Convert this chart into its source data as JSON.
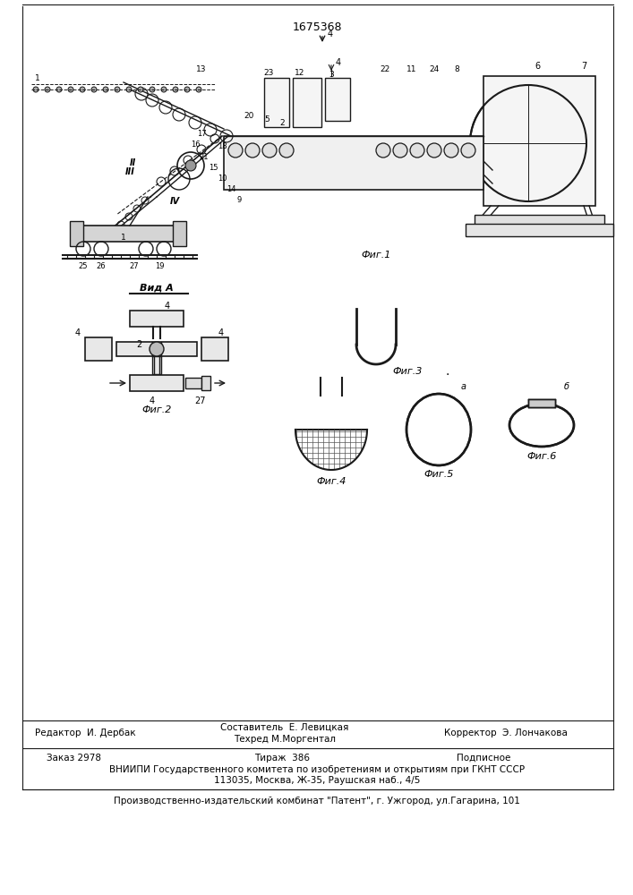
{
  "patent_number": "1675368",
  "fig1_caption": "Фиг.1",
  "fig2_caption": "Фиг.2",
  "fig3_caption": "Фиг.3",
  "fig4_caption": "Фиг.4",
  "fig5_caption": "Фиг.5",
  "fig6_caption": "Фиг.6",
  "vid_a": "Вид А",
  "bg_color": "#ffffff",
  "line_color": "#1a1a1a",
  "footer_line1": "Составитель  Е. Левицкая",
  "footer_line2": "Техред М.Моргентал",
  "footer_editor": "Редактор  И. Дербак",
  "footer_corrector": "Корректор  Э. Лончакова",
  "footer_order": "Заказ 2978",
  "footer_tirazh": "Тираж  386",
  "footer_podpisnoe": "Подписное",
  "footer_vniiipi": "ВНИИПИ Государственного комитета по изобретениям и открытиям при ГКНТ СССР",
  "footer_address": "113035, Москва, Ж-35, Раушская наб., 4/5",
  "footer_kombinat": "Производственно-издательский комбинат \"Патент\", г. Ужгород, ул.Гагарина, 101"
}
